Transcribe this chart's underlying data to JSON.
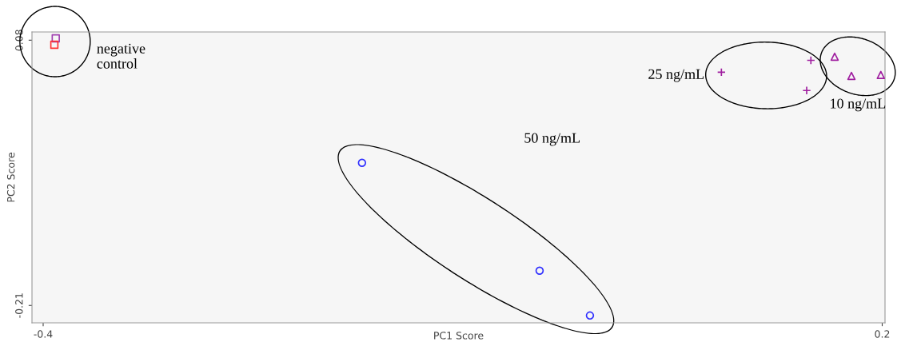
{
  "chart_data": {
    "type": "scatter",
    "xlabel": "PC1 Score",
    "ylabel": "PC2 Score",
    "xlim": [
      -0.408,
      0.202
    ],
    "ylim": [
      -0.229,
      0.089
    ],
    "xticks": [
      -0.4,
      0.2
    ],
    "yticks": [
      0.08,
      -0.21
    ],
    "grid": false,
    "legend": false,
    "series": [
      {
        "marker": "square",
        "colors": [
          "#a040b0",
          "#ff3030"
        ],
        "x": [
          -0.391,
          -0.392
        ],
        "values": [
          0.082,
          0.075
        ]
      },
      {
        "marker": "circle",
        "color": "#3030ff",
        "x": [
          -0.172,
          -0.045,
          -0.009
        ],
        "values": [
          -0.054,
          -0.172,
          -0.221
        ]
      },
      {
        "marker": "cross",
        "color": "#a020a0",
        "x": [
          0.085,
          0.149,
          0.146
        ],
        "values": [
          0.045,
          0.058,
          0.025
        ]
      },
      {
        "marker": "triangle",
        "color": "#a020a0",
        "x": [
          0.166,
          0.178,
          0.199
        ],
        "values": [
          0.062,
          0.041,
          0.042
        ]
      }
    ],
    "annotations": [
      "negative\ncontrol",
      "50 ng/mL",
      "25 ng/mL",
      "10 ng/mL"
    ]
  }
}
